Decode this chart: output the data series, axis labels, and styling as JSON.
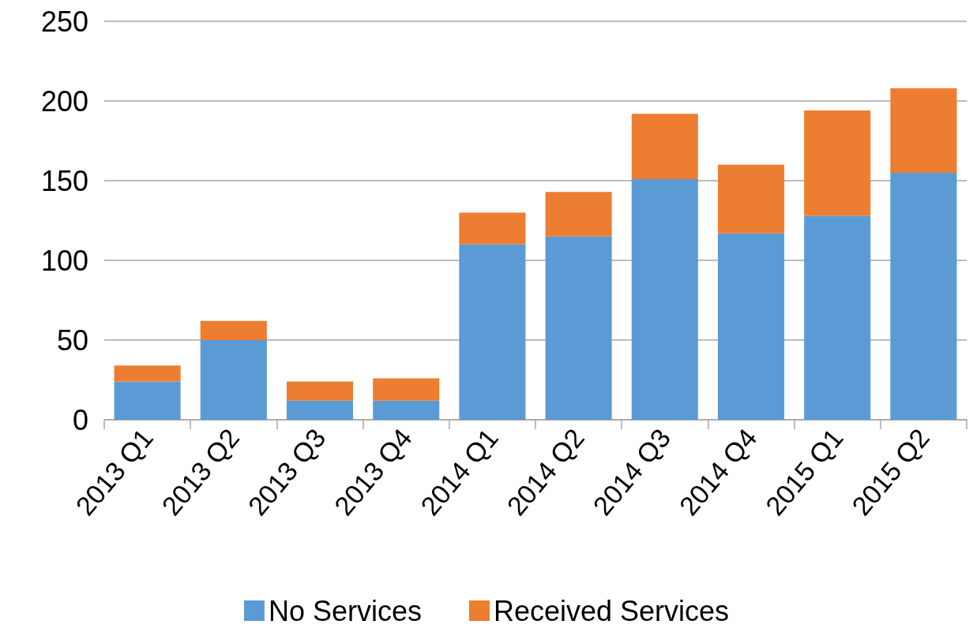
{
  "chart_data": {
    "type": "bar",
    "stacked": true,
    "categories": [
      "2013 Q1",
      "2013 Q2",
      "2013 Q3",
      "2013 Q4",
      "2014 Q1",
      "2014 Q2",
      "2014 Q3",
      "2014 Q4",
      "2015 Q1",
      "2015 Q2"
    ],
    "series": [
      {
        "name": "No Services",
        "color": "#5b9bd5",
        "values": [
          24,
          50,
          12,
          12,
          110,
          115,
          151,
          117,
          128,
          155
        ]
      },
      {
        "name": "Received Services",
        "color": "#ed7d31",
        "values": [
          10,
          12,
          12,
          14,
          20,
          28,
          41,
          43,
          66,
          53
        ]
      }
    ],
    "ylim": [
      0,
      250
    ],
    "yticks": [
      0,
      50,
      100,
      150,
      200,
      250
    ],
    "grid": "y",
    "legend": "bottom"
  }
}
